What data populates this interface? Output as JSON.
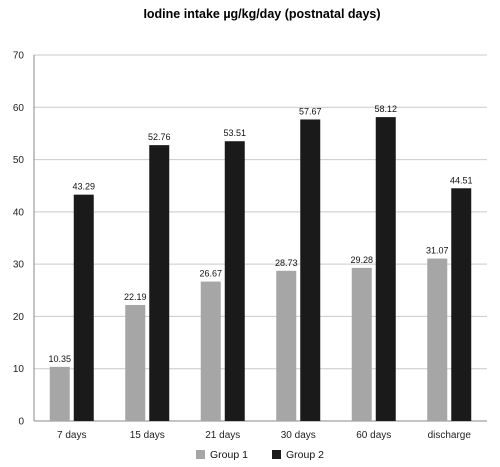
{
  "chart_data": {
    "type": "bar",
    "title": "Iodine intake µg/kg/day (postnatal days)",
    "xlabel": "",
    "ylabel": "",
    "categories": [
      "7 days",
      "15 days",
      "21 days",
      "30 days",
      "60 days",
      "discharge"
    ],
    "series": [
      {
        "name": "Group 1",
        "color": "#a6a6a6",
        "values": [
          10.35,
          22.19,
          26.67,
          28.73,
          29.28,
          31.07
        ]
      },
      {
        "name": "Group 2",
        "color": "#1a1a1a",
        "values": [
          43.29,
          52.76,
          53.51,
          57.67,
          58.12,
          44.51
        ]
      }
    ],
    "ylim": [
      0,
      70
    ],
    "yticks": [
      0,
      10,
      20,
      30,
      40,
      50,
      60,
      70
    ],
    "grid": true,
    "legend_position": "bottom"
  }
}
